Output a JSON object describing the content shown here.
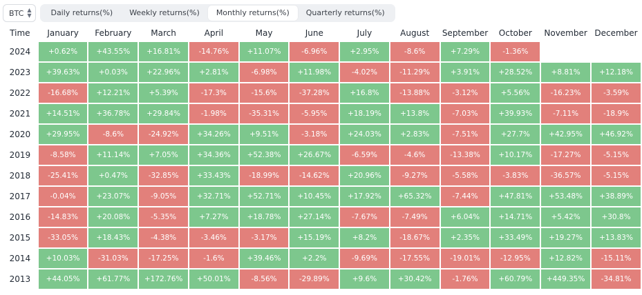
{
  "toolbar": {
    "asset": "BTC",
    "tabs": [
      {
        "label": "Daily returns(%)",
        "active": false
      },
      {
        "label": "Weekly returns(%)",
        "active": false
      },
      {
        "label": "Monthly returns(%)",
        "active": true
      },
      {
        "label": "Quarterly returns(%)",
        "active": false
      }
    ]
  },
  "colors": {
    "positive": "#7dc78d",
    "negative": "#e2807b"
  },
  "table": {
    "corner": "Time",
    "months": [
      "January",
      "February",
      "March",
      "April",
      "May",
      "June",
      "July",
      "August",
      "September",
      "October",
      "November",
      "December"
    ],
    "rows": [
      {
        "year": "2024",
        "values": [
          "+0.62%",
          "+43.55%",
          "+16.81%",
          "-14.76%",
          "+11.07%",
          "-6.96%",
          "+2.95%",
          "-8.6%",
          "+7.29%",
          "-1.36%",
          "",
          ""
        ]
      },
      {
        "year": "2023",
        "values": [
          "+39.63%",
          "+0.03%",
          "+22.96%",
          "+2.81%",
          "-6.98%",
          "+11.98%",
          "-4.02%",
          "-11.29%",
          "+3.91%",
          "+28.52%",
          "+8.81%",
          "+12.18%"
        ]
      },
      {
        "year": "2022",
        "values": [
          "-16.68%",
          "+12.21%",
          "+5.39%",
          "-17.3%",
          "-15.6%",
          "-37.28%",
          "+16.8%",
          "-13.88%",
          "-3.12%",
          "+5.56%",
          "-16.23%",
          "-3.59%"
        ]
      },
      {
        "year": "2021",
        "values": [
          "+14.51%",
          "+36.78%",
          "+29.84%",
          "-1.98%",
          "-35.31%",
          "-5.95%",
          "+18.19%",
          "+13.8%",
          "-7.03%",
          "+39.93%",
          "-7.11%",
          "-18.9%"
        ]
      },
      {
        "year": "2020",
        "values": [
          "+29.95%",
          "-8.6%",
          "-24.92%",
          "+34.26%",
          "+9.51%",
          "-3.18%",
          "+24.03%",
          "+2.83%",
          "-7.51%",
          "+27.7%",
          "+42.95%",
          "+46.92%"
        ]
      },
      {
        "year": "2019",
        "values": [
          "-8.58%",
          "+11.14%",
          "+7.05%",
          "+34.36%",
          "+52.38%",
          "+26.67%",
          "-6.59%",
          "-4.6%",
          "-13.38%",
          "+10.17%",
          "-17.27%",
          "-5.15%"
        ]
      },
      {
        "year": "2018",
        "values": [
          "-25.41%",
          "+0.47%",
          "-32.85%",
          "+33.43%",
          "-18.99%",
          "-14.62%",
          "+20.96%",
          "-9.27%",
          "-5.58%",
          "-3.83%",
          "-36.57%",
          "-5.15%"
        ]
      },
      {
        "year": "2017",
        "values": [
          "-0.04%",
          "+23.07%",
          "-9.05%",
          "+32.71%",
          "+52.71%",
          "+10.45%",
          "+17.92%",
          "+65.32%",
          "-7.44%",
          "+47.81%",
          "+53.48%",
          "+38.89%"
        ]
      },
      {
        "year": "2016",
        "values": [
          "-14.83%",
          "+20.08%",
          "-5.35%",
          "+7.27%",
          "+18.78%",
          "+27.14%",
          "-7.67%",
          "-7.49%",
          "+6.04%",
          "+14.71%",
          "+5.42%",
          "+30.8%"
        ]
      },
      {
        "year": "2015",
        "values": [
          "-33.05%",
          "+18.43%",
          "-4.38%",
          "-3.46%",
          "-3.17%",
          "+15.19%",
          "+8.2%",
          "-18.67%",
          "+2.35%",
          "+33.49%",
          "+19.27%",
          "+13.83%"
        ]
      },
      {
        "year": "2014",
        "values": [
          "+10.03%",
          "-31.03%",
          "-17.25%",
          "-1.6%",
          "+39.46%",
          "+2.2%",
          "-9.69%",
          "-17.55%",
          "-19.01%",
          "-12.95%",
          "+12.82%",
          "-15.11%"
        ]
      },
      {
        "year": "2013",
        "values": [
          "+44.05%",
          "+61.77%",
          "+172.76%",
          "+50.01%",
          "-8.56%",
          "-29.89%",
          "+9.6%",
          "+30.42%",
          "-1.76%",
          "+60.79%",
          "+449.35%",
          "-34.81%"
        ]
      }
    ]
  }
}
